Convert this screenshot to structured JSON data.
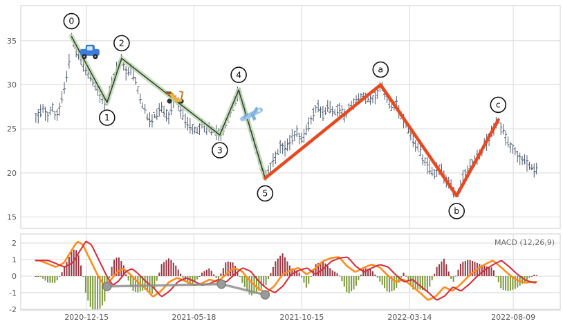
{
  "figure": {
    "background": "#ffffff"
  },
  "chart_data": [
    {
      "type": "ohlc",
      "panel": "price",
      "title": "",
      "xlabel": "",
      "ylabel": "",
      "ylim": [
        13.7,
        39.0
      ],
      "y_ticks": [
        15,
        20,
        25,
        30,
        35
      ],
      "x_ticks": [
        {
          "f": 0.122,
          "label": "2020-12-15"
        },
        {
          "f": 0.321,
          "label": "2021-05-18"
        },
        {
          "f": 0.521,
          "label": "2021-10-15"
        },
        {
          "f": 0.721,
          "label": "2022-03-14"
        },
        {
          "f": 0.913,
          "label": "2022-08-09"
        }
      ],
      "bar_color": "#3c4a63",
      "grid_color": "#d9d9d9",
      "price_path": [
        [
          0.03,
          26.4
        ],
        [
          0.04,
          27.2
        ],
        [
          0.05,
          26.6
        ],
        [
          0.058,
          27.6
        ],
        [
          0.066,
          26.2
        ],
        [
          0.074,
          27.9
        ],
        [
          0.082,
          29.6
        ],
        [
          0.088,
          31.8
        ],
        [
          0.094,
          35.5
        ],
        [
          0.1,
          34.2
        ],
        [
          0.108,
          33.0
        ],
        [
          0.116,
          32.2
        ],
        [
          0.124,
          31.6
        ],
        [
          0.132,
          30.4
        ],
        [
          0.14,
          29.6
        ],
        [
          0.148,
          28.8
        ],
        [
          0.155,
          28.1
        ],
        [
          0.16,
          28.0
        ],
        [
          0.168,
          29.8
        ],
        [
          0.176,
          31.6
        ],
        [
          0.187,
          33.0
        ],
        [
          0.196,
          31.2
        ],
        [
          0.205,
          31.8
        ],
        [
          0.214,
          30.1
        ],
        [
          0.222,
          28.3
        ],
        [
          0.23,
          27.0
        ],
        [
          0.24,
          25.9
        ],
        [
          0.25,
          26.6
        ],
        [
          0.262,
          27.3
        ],
        [
          0.274,
          26.4
        ],
        [
          0.286,
          28.6
        ],
        [
          0.296,
          27.2
        ],
        [
          0.306,
          25.8
        ],
        [
          0.316,
          25.2
        ],
        [
          0.326,
          24.7
        ],
        [
          0.336,
          25.4
        ],
        [
          0.346,
          25.0
        ],
        [
          0.356,
          24.8
        ],
        [
          0.369,
          24.3
        ],
        [
          0.38,
          25.6
        ],
        [
          0.39,
          27.0
        ],
        [
          0.398,
          28.4
        ],
        [
          0.404,
          29.4
        ],
        [
          0.412,
          27.6
        ],
        [
          0.42,
          26.2
        ],
        [
          0.428,
          24.6
        ],
        [
          0.436,
          22.8
        ],
        [
          0.444,
          21.2
        ],
        [
          0.453,
          19.4
        ],
        [
          0.462,
          20.6
        ],
        [
          0.472,
          21.8
        ],
        [
          0.482,
          23.2
        ],
        [
          0.492,
          22.6
        ],
        [
          0.502,
          24.0
        ],
        [
          0.512,
          24.6
        ],
        [
          0.522,
          23.6
        ],
        [
          0.532,
          25.2
        ],
        [
          0.542,
          26.8
        ],
        [
          0.552,
          27.6
        ],
        [
          0.56,
          26.6
        ],
        [
          0.57,
          27.6
        ],
        [
          0.58,
          26.8
        ],
        [
          0.59,
          27.4
        ],
        [
          0.6,
          26.4
        ],
        [
          0.612,
          27.6
        ],
        [
          0.624,
          28.2
        ],
        [
          0.636,
          28.8
        ],
        [
          0.648,
          28.2
        ],
        [
          0.658,
          28.8
        ],
        [
          0.667,
          30.0
        ],
        [
          0.676,
          28.8
        ],
        [
          0.686,
          27.4
        ],
        [
          0.696,
          27.9
        ],
        [
          0.706,
          26.4
        ],
        [
          0.716,
          25.2
        ],
        [
          0.726,
          24.0
        ],
        [
          0.736,
          22.8
        ],
        [
          0.746,
          21.6
        ],
        [
          0.756,
          20.6
        ],
        [
          0.766,
          19.9
        ],
        [
          0.776,
          20.7
        ],
        [
          0.786,
          19.6
        ],
        [
          0.796,
          18.6
        ],
        [
          0.808,
          17.4
        ],
        [
          0.818,
          19.2
        ],
        [
          0.828,
          20.3
        ],
        [
          0.838,
          21.3
        ],
        [
          0.848,
          21.9
        ],
        [
          0.858,
          22.9
        ],
        [
          0.868,
          23.9
        ],
        [
          0.876,
          24.9
        ],
        [
          0.885,
          26.0
        ],
        [
          0.893,
          24.8
        ],
        [
          0.901,
          23.8
        ],
        [
          0.911,
          22.9
        ],
        [
          0.921,
          22.1
        ],
        [
          0.931,
          21.5
        ],
        [
          0.941,
          21.0
        ],
        [
          0.952,
          20.4
        ]
      ],
      "waves": {
        "impulse": {
          "line_color": "#2f3b2f",
          "glow_color": "#b7d6a8",
          "points": [
            {
              "label": "0",
              "f": 0.094,
              "price": 35.5,
              "pos": "above"
            },
            {
              "label": "1",
              "f": 0.16,
              "price": 28.0,
              "pos": "below"
            },
            {
              "label": "2",
              "f": 0.187,
              "price": 33.0,
              "pos": "above"
            },
            {
              "label": "3",
              "f": 0.369,
              "price": 24.3,
              "pos": "below"
            },
            {
              "label": "4",
              "f": 0.404,
              "price": 29.4,
              "pos": "above"
            },
            {
              "label": "5",
              "f": 0.453,
              "price": 19.4,
              "pos": "below"
            }
          ]
        },
        "corrective": {
          "line_color": "#e8491f",
          "points": [
            {
              "label": "5",
              "f": 0.453,
              "price": 19.4,
              "pos": "none"
            },
            {
              "label": "a",
              "f": 0.667,
              "price": 30.0,
              "pos": "above"
            },
            {
              "label": "b",
              "f": 0.808,
              "price": 17.4,
              "pos": "below"
            },
            {
              "label": "c",
              "f": 0.885,
              "price": 26.0,
              "pos": "above"
            }
          ]
        }
      },
      "icons": [
        {
          "name": "car-icon",
          "f": 0.128,
          "price": 33.6
        },
        {
          "name": "scooter-icon",
          "f": 0.286,
          "price": 28.7
        },
        {
          "name": "airplane-icon",
          "f": 0.429,
          "price": 26.6
        }
      ]
    },
    {
      "type": "line",
      "panel": "macd",
      "legend": "MACD (12,26,9)",
      "ylim": [
        -2.05,
        2.55
      ],
      "y_ticks": [
        -2,
        -1,
        0,
        1,
        2
      ],
      "macd_color": "#ff8c1a",
      "signal_color": "#d62e3e",
      "hist_pos_color": "#8e1f2e",
      "hist_neg_color": "#6f8f23",
      "grid_color": "#d9d9d9",
      "macd_points": [
        [
          0.035,
          0.95
        ],
        [
          0.05,
          0.75
        ],
        [
          0.065,
          0.55
        ],
        [
          0.08,
          0.8
        ],
        [
          0.095,
          1.6
        ],
        [
          0.105,
          2.1
        ],
        [
          0.115,
          1.9
        ],
        [
          0.13,
          0.9
        ],
        [
          0.145,
          -0.1
        ],
        [
          0.155,
          -0.55
        ],
        [
          0.165,
          -0.3
        ],
        [
          0.18,
          0.3
        ],
        [
          0.19,
          0.45
        ],
        [
          0.2,
          0.2
        ],
        [
          0.215,
          -0.3
        ],
        [
          0.23,
          -0.7
        ],
        [
          0.245,
          -1.25
        ],
        [
          0.26,
          -0.9
        ],
        [
          0.275,
          -0.35
        ],
        [
          0.29,
          -0.1
        ],
        [
          0.305,
          -0.3
        ],
        [
          0.32,
          -0.55
        ],
        [
          0.335,
          -0.45
        ],
        [
          0.35,
          -0.2
        ],
        [
          0.365,
          -0.35
        ],
        [
          0.38,
          0.1
        ],
        [
          0.395,
          0.5
        ],
        [
          0.41,
          0.3
        ],
        [
          0.425,
          -0.3
        ],
        [
          0.44,
          -0.75
        ],
        [
          0.455,
          -1.0
        ],
        [
          0.47,
          -0.6
        ],
        [
          0.485,
          0.1
        ],
        [
          0.5,
          0.35
        ],
        [
          0.515,
          0.5
        ],
        [
          0.53,
          0.1
        ],
        [
          0.545,
          0.45
        ],
        [
          0.56,
          0.9
        ],
        [
          0.575,
          1.1
        ],
        [
          0.59,
          1.15
        ],
        [
          0.605,
          0.6
        ],
        [
          0.62,
          0.25
        ],
        [
          0.635,
          0.5
        ],
        [
          0.65,
          0.7
        ],
        [
          0.665,
          0.55
        ],
        [
          0.68,
          0.05
        ],
        [
          0.695,
          -0.35
        ],
        [
          0.71,
          -0.2
        ],
        [
          0.725,
          -0.6
        ],
        [
          0.74,
          -1.0
        ],
        [
          0.755,
          -1.45
        ],
        [
          0.77,
          -1.2
        ],
        [
          0.785,
          -0.65
        ],
        [
          0.8,
          -0.9
        ],
        [
          0.815,
          -0.5
        ],
        [
          0.83,
          0.0
        ],
        [
          0.845,
          0.4
        ],
        [
          0.86,
          0.7
        ],
        [
          0.875,
          0.95
        ],
        [
          0.89,
          0.55
        ],
        [
          0.905,
          0.1
        ],
        [
          0.92,
          -0.25
        ],
        [
          0.935,
          -0.4
        ],
        [
          0.95,
          -0.35
        ]
      ],
      "divergence": {
        "color": "#8f8f8f",
        "dot_color": "#9a9a9a",
        "points": [
          [
            0.16,
            -0.62
          ],
          [
            0.372,
            -0.48
          ],
          [
            0.453,
            -1.13
          ]
        ]
      }
    }
  ]
}
